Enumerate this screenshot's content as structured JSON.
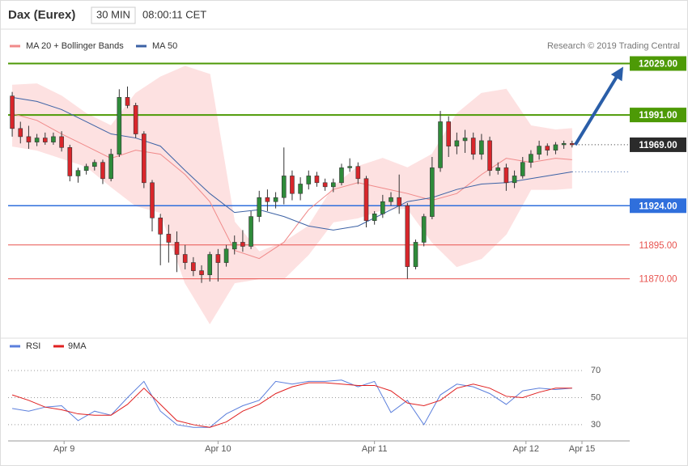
{
  "chart_data": {
    "type": "candlestick",
    "title": "Dax (Eurex)",
    "timeframe": "30 MIN",
    "time": "08:00:11 CET",
    "credit": "Research © 2019 Trading Central",
    "xlim": [
      -0.5,
      75
    ],
    "xticks": [
      {
        "value": 6.3,
        "label": "Apr 9"
      },
      {
        "value": 25,
        "label": "Apr 10"
      },
      {
        "value": 44,
        "label": "Apr 11"
      },
      {
        "value": 62.4,
        "label": "Apr 12"
      },
      {
        "value": 69.2,
        "label": "Apr 15"
      }
    ],
    "ylim": [
      11822,
      12052
    ],
    "up_color": "#2e8b3a",
    "down_color": "#d9262b",
    "ohlc": [
      [
        12005,
        12008,
        11975,
        11981
      ],
      [
        11981,
        11986,
        11970,
        11975
      ],
      [
        11975,
        11983,
        11966,
        11971
      ],
      [
        11971,
        11977,
        11968,
        11974
      ],
      [
        11974,
        11978,
        11969,
        11971
      ],
      [
        11971,
        11978,
        11969,
        11975
      ],
      [
        11975,
        11979,
        11964,
        11967
      ],
      [
        11967,
        11969,
        11942,
        11946
      ],
      [
        11946,
        11952,
        11941,
        11950
      ],
      [
        11950,
        11955,
        11947,
        11953
      ],
      [
        11953,
        11958,
        11950,
        11956
      ],
      [
        11956,
        11958,
        11940,
        11944
      ],
      [
        11944,
        11966,
        11942,
        11962
      ],
      [
        11962,
        12010,
        11960,
        12004
      ],
      [
        12004,
        12012,
        11996,
        11998
      ],
      [
        11998,
        12000,
        11974,
        11977
      ],
      [
        11977,
        11979,
        11937,
        11941
      ],
      [
        11941,
        11943,
        11905,
        11915
      ],
      [
        11915,
        11918,
        11880,
        11903
      ],
      [
        11903,
        11910,
        11882,
        11897
      ],
      [
        11897,
        11905,
        11875,
        11888
      ],
      [
        11888,
        11895,
        11877,
        11882
      ],
      [
        11882,
        11886,
        11872,
        11876
      ],
      [
        11876,
        11880,
        11867,
        11873
      ],
      [
        11873,
        11890,
        11868,
        11888
      ],
      [
        11888,
        11892,
        11868,
        11882
      ],
      [
        11882,
        11895,
        11879,
        11892
      ],
      [
        11892,
        11902,
        11888,
        11897
      ],
      [
        11897,
        11906,
        11890,
        11894
      ],
      [
        11894,
        11920,
        11892,
        11916
      ],
      [
        11916,
        11935,
        11912,
        11930
      ],
      [
        11930,
        11936,
        11920,
        11927
      ],
      [
        11927,
        11934,
        11922,
        11930
      ],
      [
        11930,
        11967,
        11925,
        11946
      ],
      [
        11946,
        11950,
        11928,
        11933
      ],
      [
        11933,
        11945,
        11928,
        11940
      ],
      [
        11940,
        11950,
        11936,
        11946
      ],
      [
        11946,
        11949,
        11938,
        11941
      ],
      [
        11941,
        11944,
        11935,
        11938
      ],
      [
        11938,
        11944,
        11934,
        11941
      ],
      [
        11941,
        11955,
        11939,
        11952
      ],
      [
        11952,
        11959,
        11949,
        11953
      ],
      [
        11953,
        11956,
        11940,
        11944
      ],
      [
        11944,
        11946,
        11908,
        11913
      ],
      [
        11913,
        11920,
        11910,
        11918
      ],
      [
        11918,
        11932,
        11915,
        11927
      ],
      [
        11927,
        11934,
        11924,
        11930
      ],
      [
        11930,
        11947,
        11918,
        11924
      ],
      [
        11924,
        11926,
        11870,
        11879
      ],
      [
        11879,
        11899,
        11877,
        11897
      ],
      [
        11897,
        11918,
        11894,
        11916
      ],
      [
        11916,
        11960,
        11914,
        11952
      ],
      [
        11952,
        11994,
        11949,
        11986
      ],
      [
        11986,
        11990,
        11960,
        11968
      ],
      [
        11968,
        11978,
        11962,
        11972
      ],
      [
        11972,
        11980,
        11963,
        11974
      ],
      [
        11974,
        11978,
        11958,
        11962
      ],
      [
        11962,
        11977,
        11958,
        11972
      ],
      [
        11972,
        11975,
        11946,
        11950
      ],
      [
        11950,
        11956,
        11947,
        11952
      ],
      [
        11952,
        11955,
        11935,
        11941
      ],
      [
        11941,
        11950,
        11937,
        11946
      ],
      [
        11946,
        11960,
        11944,
        11956
      ],
      [
        11956,
        11965,
        11952,
        11962
      ],
      [
        11962,
        11972,
        11958,
        11968
      ],
      [
        11968,
        11970,
        11961,
        11965
      ],
      [
        11965,
        11971,
        11962,
        11969
      ],
      [
        11969,
        11972,
        11966,
        11970
      ],
      [
        11970,
        11972,
        11967,
        11969
      ]
    ],
    "series": [
      {
        "name": "MA 20 + Bollinger Bands",
        "color": "#f08a8a",
        "x": [
          0,
          3,
          6,
          9,
          12,
          15,
          18,
          21,
          24,
          27,
          30,
          33,
          36,
          39,
          42,
          45,
          48,
          51,
          54,
          57,
          60,
          63,
          66,
          68
        ],
        "values": [
          11992,
          11987,
          11977,
          11968,
          11959,
          11965,
          11962,
          11947,
          11927,
          11891,
          11885,
          11897,
          11921,
          11936,
          11941,
          11937,
          11933,
          11928,
          11933,
          11947,
          11959,
          11956,
          11959,
          11958
        ]
      },
      {
        "name": "MA 50",
        "color": "#3c62a5",
        "x": [
          0,
          3,
          6,
          9,
          12,
          15,
          18,
          21,
          24,
          27,
          30,
          33,
          36,
          39,
          42,
          45,
          48,
          51,
          54,
          57,
          60,
          63,
          66,
          68
        ],
        "values": [
          12004,
          12001,
          11995,
          11986,
          11977,
          11974,
          11968,
          11950,
          11933,
          11919,
          11921,
          11916,
          11909,
          11906,
          11909,
          11918,
          11927,
          11930,
          11936,
          11940,
          11941,
          11944,
          11947,
          11949
        ]
      }
    ],
    "bands": {
      "color": "#fde1e1",
      "upper": [
        12013,
        12014,
        12005,
        11992,
        11983,
        12007,
        12019,
        12027,
        12021,
        11912,
        11890,
        11897,
        11909,
        11938,
        11953,
        11959,
        11952,
        11962,
        11992,
        12007,
        12010,
        11983,
        11980,
        11981
      ],
      "lower": [
        11968,
        11965,
        11959,
        11953,
        11938,
        11924,
        11919,
        11867,
        11837,
        11867,
        11870,
        11870,
        11888,
        11912,
        11915,
        11921,
        11922,
        11897,
        11879,
        11885,
        11903,
        11936,
        11936,
        11937
      ]
    },
    "levels": [
      {
        "value": 12029,
        "label": "12029.00",
        "color": "#4d9a06",
        "boxed": true,
        "style": "solid"
      },
      {
        "value": 11991,
        "label": "11991.00",
        "color": "#4d9a06",
        "boxed": true,
        "style": "solid"
      },
      {
        "value": 11969,
        "label": "11969.00",
        "color": "#2b2b2b",
        "boxed": true,
        "style": "dotted"
      },
      {
        "value": 11924,
        "label": "11924.00",
        "color": "#2f6fdc",
        "boxed": true,
        "style": "solid"
      },
      {
        "value": 11895,
        "label": "11895.00",
        "color": "#e8534f",
        "boxed": false,
        "style": "solid"
      },
      {
        "value": 11870,
        "label": "11870.00",
        "color": "#e8534f",
        "boxed": false,
        "style": "solid"
      }
    ],
    "arrow_color": "#2a5ea8",
    "rsi": {
      "ylim": [
        18,
        79
      ],
      "yticks": [
        30,
        50,
        70
      ],
      "series": [
        {
          "name": "RSI",
          "color": "#5b7fdc",
          "x": [
            0,
            2,
            4,
            6,
            8,
            10,
            12,
            14,
            16,
            18,
            20,
            22,
            24,
            26,
            28,
            30,
            32,
            34,
            36,
            38,
            40,
            42,
            44,
            46,
            48,
            50,
            52,
            54,
            56,
            58,
            60,
            62,
            64,
            66,
            68
          ],
          "values": [
            42,
            40,
            43,
            44,
            33,
            40,
            37,
            50,
            62,
            40,
            30,
            28,
            28,
            38,
            44,
            48,
            62,
            60,
            62,
            62,
            63,
            58,
            62,
            39,
            48,
            30,
            52,
            60,
            58,
            53,
            45,
            55,
            57,
            56,
            57
          ]
        },
        {
          "name": "9MA",
          "color": "#e02020",
          "x": [
            0,
            2,
            4,
            6,
            8,
            10,
            12,
            14,
            16,
            18,
            20,
            22,
            24,
            26,
            28,
            30,
            32,
            34,
            36,
            38,
            40,
            42,
            44,
            46,
            48,
            50,
            52,
            54,
            56,
            58,
            60,
            62,
            64,
            66,
            68
          ],
          "values": [
            52,
            48,
            43,
            41,
            38,
            37,
            37,
            45,
            57,
            45,
            33,
            30,
            28,
            32,
            40,
            45,
            53,
            58,
            61,
            61,
            60,
            59,
            59,
            55,
            46,
            44,
            48,
            57,
            60,
            57,
            51,
            50,
            54,
            57,
            57
          ]
        }
      ]
    }
  }
}
